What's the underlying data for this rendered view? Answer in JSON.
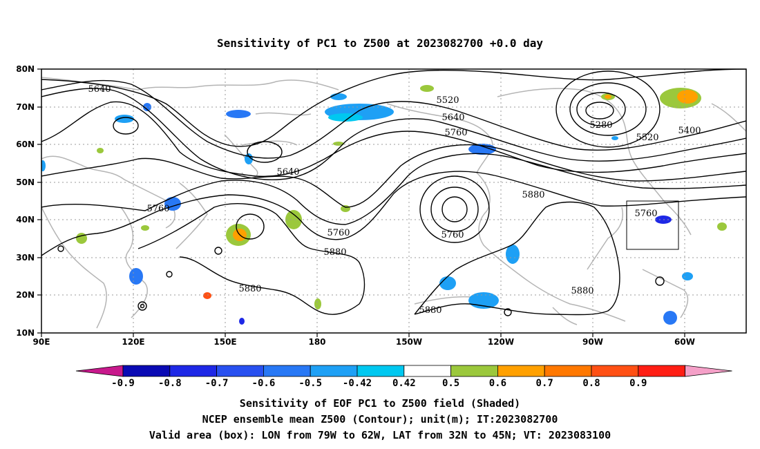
{
  "title": "Sensitivity of PC1 to Z500 at 2023082700 +0.0 day",
  "lon_ticks": [
    "90E",
    "120E",
    "150E",
    "180",
    "150W",
    "120W",
    "90W",
    "60W"
  ],
  "lat_ticks": [
    "80N",
    "70N",
    "60N",
    "50N",
    "40N",
    "30N",
    "20N",
    "10N"
  ],
  "contour_labels": [
    "5640",
    "5520",
    "5640",
    "5760",
    "5280",
    "5520",
    "5400",
    "5640",
    "5760",
    "5760",
    "5880",
    "5760",
    "5760",
    "5880",
    "5880",
    "5880",
    "5880"
  ],
  "colorbar": {
    "labels": [
      "-0.9",
      "-0.8",
      "-0.7",
      "-0.6",
      "-0.5",
      "-0.42",
      "0.42",
      "0.5",
      "0.6",
      "0.7",
      "0.8",
      "0.9"
    ],
    "colors": [
      "#c8198c",
      "#0a0ab4",
      "#1e28e6",
      "#2850f0",
      "#2878f5",
      "#1ea0f5",
      "#00c8f0",
      "#ffffff",
      "#9bc83c",
      "#ffa000",
      "#ff7800",
      "#ff5014",
      "#ff1e14",
      "#f5a0c8"
    ]
  },
  "caption": {
    "line1": "Sensitivity of EOF PC1 to Z500 field (Shaded)",
    "line2": "NCEP ensemble mean Z500 (Contour); unit(m); IT:2023082700",
    "line3": "Valid area (box): LON from 79W to 62W, LAT from 32N to 45N; VT: 2023083100"
  }
}
